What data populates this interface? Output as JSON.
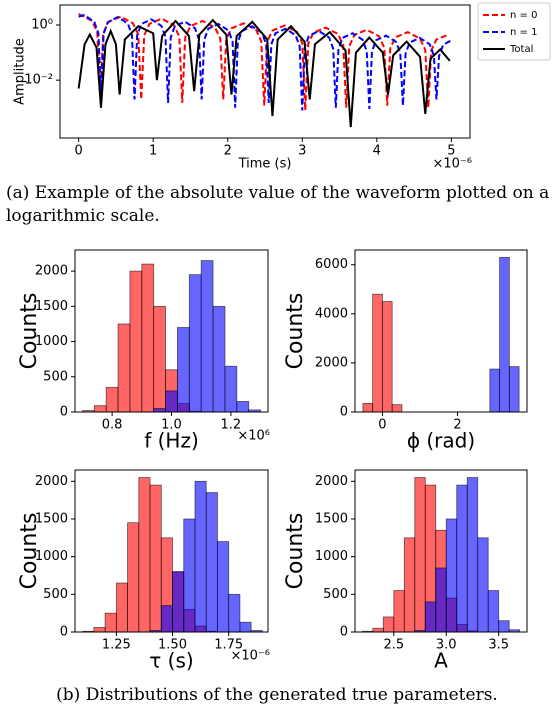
{
  "chart_data": [
    {
      "type": "line",
      "x_label": "Time (s)",
      "y_label": "Amplitude",
      "x_offset_label": "×10⁻⁶",
      "log_y": true,
      "xlim": [
        -0.25,
        5.25
      ],
      "ylim": [
        8e-05,
        5.3
      ],
      "xticks": [
        0,
        1,
        2,
        3,
        4,
        5
      ],
      "yticks": [
        {
          "value": 1,
          "label": "10⁰"
        },
        {
          "value": 0.01,
          "label": "10⁻²"
        }
      ],
      "legend": "outside-right",
      "series": [
        {
          "name": "n = 0",
          "color": "#ff0000",
          "dash": "dashed",
          "x": [
            0,
            0.18,
            0.25,
            0.29,
            0.33,
            0.4,
            0.565,
            0.73,
            0.8,
            0.84,
            0.88,
            0.95,
            1.115,
            1.28,
            1.35,
            1.39,
            1.43,
            1.5,
            1.665,
            1.83,
            1.9,
            1.94,
            1.98,
            2.05,
            2.215,
            2.38,
            2.45,
            2.49,
            2.53,
            2.6,
            2.765,
            2.93,
            3.0,
            3.04,
            3.08,
            3.15,
            3.315,
            3.48,
            3.55,
            3.59,
            3.63,
            3.7,
            3.865,
            4.03,
            4.1,
            4.14,
            4.18,
            4.25,
            4.415,
            4.58,
            4.65,
            4.69,
            4.73,
            4.8,
            4.965
          ],
          "values": [
            2.5,
            1.4,
            0.55,
            0.003,
            0.5,
            1.3,
            2.0,
            1.15,
            0.45,
            0.002,
            0.42,
            1.1,
            1.7,
            0.98,
            0.38,
            0.0015,
            0.36,
            0.92,
            1.4,
            0.8,
            0.32,
            0.002,
            0.3,
            0.76,
            1.15,
            0.67,
            0.26,
            0.0012,
            0.25,
            0.63,
            0.96,
            0.56,
            0.22,
            0.0008,
            0.21,
            0.53,
            0.8,
            0.47,
            0.18,
            0.001,
            0.17,
            0.44,
            0.67,
            0.39,
            0.15,
            0.0012,
            0.14,
            0.36,
            0.55,
            0.32,
            0.125,
            0.001,
            0.12,
            0.3,
            0.45
          ]
        },
        {
          "name": "n = 1",
          "color": "#0000ff",
          "dash": "dashed",
          "x": [
            0,
            0.075,
            0.21,
            0.265,
            0.3,
            0.335,
            0.39,
            0.525,
            0.66,
            0.715,
            0.75,
            0.785,
            0.84,
            0.975,
            1.11,
            1.165,
            1.2,
            1.235,
            1.29,
            1.425,
            1.56,
            1.615,
            1.65,
            1.685,
            1.74,
            1.875,
            2.01,
            2.065,
            2.1,
            2.135,
            2.19,
            2.325,
            2.46,
            2.515,
            2.55,
            2.585,
            2.64,
            2.775,
            2.91,
            2.965,
            3.0,
            3.035,
            3.09,
            3.225,
            3.36,
            3.415,
            3.45,
            3.485,
            3.54,
            3.675,
            3.81,
            3.865,
            3.9,
            3.935,
            3.99,
            4.125,
            4.26,
            4.315,
            4.35,
            4.385,
            4.44,
            4.575,
            4.71,
            4.765,
            4.8,
            4.835,
            4.89,
            5.0
          ],
          "values": [
            2.0,
            2.3,
            1.3,
            0.5,
            0.003,
            0.48,
            1.25,
            1.95,
            1.12,
            0.44,
            0.002,
            0.42,
            1.08,
            1.6,
            0.93,
            0.37,
            0.0015,
            0.35,
            0.9,
            1.32,
            0.77,
            0.3,
            0.002,
            0.29,
            0.74,
            1.08,
            0.63,
            0.25,
            0.001,
            0.24,
            0.6,
            0.9,
            0.52,
            0.2,
            0.0015,
            0.2,
            0.5,
            0.73,
            0.43,
            0.17,
            0.0008,
            0.16,
            0.41,
            0.6,
            0.35,
            0.14,
            0.001,
            0.13,
            0.34,
            0.5,
            0.29,
            0.11,
            0.0009,
            0.11,
            0.28,
            0.41,
            0.24,
            0.095,
            0.0012,
            0.09,
            0.23,
            0.34,
            0.2,
            0.078,
            0.002,
            0.075,
            0.19,
            0.28
          ]
        },
        {
          "name": "Total",
          "color": "#000000",
          "dash": "solid",
          "x": [
            0,
            0.08,
            0.15,
            0.24,
            0.3,
            0.36,
            0.43,
            0.5,
            0.55,
            0.62,
            0.8,
            1.0,
            1.05,
            1.12,
            1.3,
            1.48,
            1.55,
            1.62,
            1.8,
            1.98,
            2.05,
            2.12,
            2.33,
            2.53,
            2.6,
            2.67,
            2.85,
            3.03,
            3.1,
            3.17,
            3.37,
            3.58,
            3.65,
            3.72,
            3.9,
            4.08,
            4.15,
            4.22,
            4.4,
            4.58,
            4.65,
            4.72,
            4.85,
            4.98
          ],
          "values": [
            0.005,
            0.2,
            0.45,
            0.15,
            0.001,
            0.2,
            0.6,
            0.2,
            0.003,
            0.3,
            0.9,
            0.5,
            0.01,
            0.4,
            1.4,
            0.4,
            0.004,
            0.45,
            1.5,
            0.45,
            0.003,
            0.4,
            1.3,
            0.3,
            0.0005,
            0.3,
            0.9,
            0.25,
            0.002,
            0.2,
            0.55,
            0.12,
            0.0002,
            0.1,
            0.35,
            0.1,
            0.003,
            0.08,
            0.25,
            0.07,
            0.0006,
            0.06,
            0.13,
            0.05
          ]
        }
      ]
    },
    {
      "type": "histogram",
      "x_label": "f (Hz)",
      "y_label": "Counts",
      "x_offset_label": "×10⁶",
      "alpha": 0.6,
      "bins": [
        0.7,
        0.74,
        0.78,
        0.82,
        0.86,
        0.9,
        0.94,
        0.98,
        1.02,
        1.06,
        1.1,
        1.14,
        1.18,
        1.22,
        1.26,
        1.3
      ],
      "xlim": [
        0.675,
        1.325
      ],
      "ylim": [
        0,
        2300
      ],
      "xticks": [
        0.8,
        {
          "value": 1,
          "label": "1.0"
        },
        1.2
      ],
      "yticks": [
        0,
        500,
        1000,
        1500,
        2000
      ],
      "series": [
        {
          "color": "#ff0000",
          "values": [
            20,
            90,
            350,
            1250,
            2000,
            2100,
            1500,
            600,
            120,
            10,
            0,
            0,
            0,
            0,
            0
          ]
        },
        {
          "color": "#0000ff",
          "values": [
            0,
            0,
            0,
            0,
            0,
            0,
            50,
            300,
            1200,
            1950,
            2150,
            1500,
            650,
            150,
            30
          ]
        }
      ]
    },
    {
      "type": "histogram",
      "x_label": "ϕ (rad)",
      "y_label": "Counts",
      "alpha": 0.6,
      "bins": [
        -0.52,
        -0.26,
        0,
        0.26,
        0.52,
        0.78,
        1.04,
        1.3,
        1.56,
        1.82,
        2.08,
        2.34,
        2.6,
        2.86,
        3.12,
        3.38,
        3.64
      ],
      "xlim": [
        -0.73,
        3.85
      ],
      "ylim": [
        0,
        6600
      ],
      "xticks": [
        0,
        2
      ],
      "yticks": [
        0,
        2000,
        4000,
        6000
      ],
      "series": [
        {
          "color": "#ff0000",
          "values": [
            350,
            4800,
            4500,
            300,
            0,
            0,
            0,
            0,
            0,
            0,
            0,
            0,
            0,
            0,
            0,
            0
          ]
        },
        {
          "color": "#0000ff",
          "values": [
            0,
            0,
            0,
            0,
            0,
            0,
            0,
            0,
            0,
            0,
            0,
            0,
            0,
            1750,
            6300,
            1850
          ]
        }
      ]
    },
    {
      "type": "histogram",
      "x_label": "τ (s)",
      "y_label": "Counts",
      "x_offset_label": "×10⁻⁶",
      "alpha": 0.6,
      "bins": [
        1.1,
        1.15,
        1.2,
        1.25,
        1.3,
        1.35,
        1.4,
        1.45,
        1.5,
        1.55,
        1.6,
        1.65,
        1.7,
        1.75,
        1.8,
        1.85,
        1.9
      ],
      "xlim": [
        1.066,
        1.925
      ],
      "ylim": [
        0,
        2150
      ],
      "xticks": [
        1.25,
        {
          "value": 1.5,
          "label": "1.50"
        },
        1.75
      ],
      "yticks": [
        0,
        500,
        1000,
        1500,
        2000
      ],
      "series": [
        {
          "color": "#ff0000",
          "values": [
            10,
            60,
            250,
            650,
            1450,
            2050,
            1950,
            1250,
            800,
            300,
            80,
            10,
            0,
            0,
            0,
            0
          ]
        },
        {
          "color": "#0000ff",
          "values": [
            0,
            0,
            0,
            0,
            0,
            0,
            20,
            350,
            800,
            1500,
            2000,
            1850,
            1200,
            500,
            130,
            20
          ]
        }
      ]
    },
    {
      "type": "histogram",
      "x_label": "A",
      "y_label": "Counts",
      "alpha": 0.6,
      "bins": [
        2.2,
        2.3,
        2.4,
        2.5,
        2.6,
        2.7,
        2.8,
        2.9,
        3.0,
        3.1,
        3.2,
        3.3,
        3.4,
        3.5,
        3.6,
        3.7
      ],
      "xlim": [
        2.13,
        3.77
      ],
      "ylim": [
        0,
        2150
      ],
      "xticks": [
        2.5,
        {
          "value": 3,
          "label": "3.0"
        },
        3.5
      ],
      "yticks": [
        0,
        500,
        1000,
        1500,
        2000
      ],
      "series": [
        {
          "color": "#ff0000",
          "values": [
            10,
            50,
            200,
            550,
            1250,
            2050,
            1950,
            1350,
            450,
            100,
            15,
            0,
            0,
            0,
            0
          ]
        },
        {
          "color": "#0000ff",
          "values": [
            0,
            0,
            0,
            0,
            0,
            20,
            400,
            850,
            1500,
            1950,
            2050,
            1250,
            550,
            150,
            30
          ]
        }
      ]
    }
  ],
  "captions": [
    "(a) Example of the absolute value of the waveform plotted on a logarithmic scale.",
    "(b) Distributions of the generated true parameters."
  ]
}
